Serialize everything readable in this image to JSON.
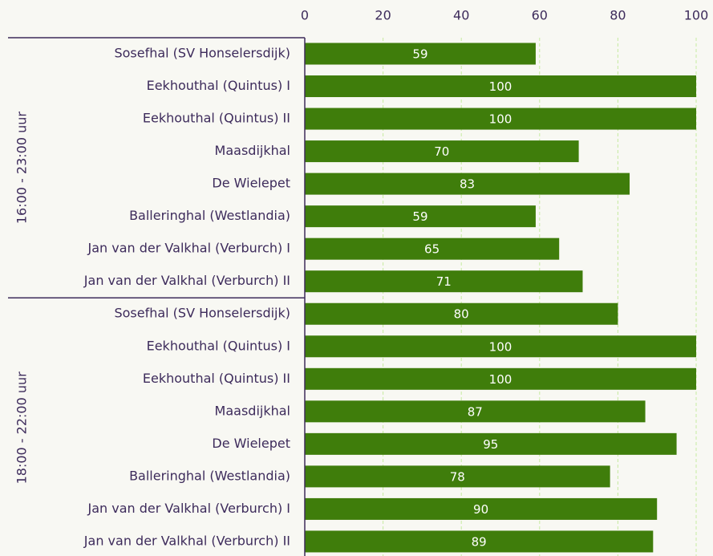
{
  "chart_data": {
    "type": "bar",
    "orientation": "horizontal",
    "color": "#3f7d0b",
    "grid": true,
    "xlim": [
      0,
      100
    ],
    "xticks": [
      0,
      20,
      40,
      60,
      80,
      100
    ],
    "groups": [
      {
        "label": "16:00 - 23:00 uur",
        "categories": [
          "Sosefhal (SV Honselersdijk)",
          "Eekhouthal (Quintus) I",
          "Eekhouthal (Quintus) II",
          "Maasdijkhal",
          "De Wielepet",
          "Balleringhal (Westlandia)",
          "Jan van der Valkhal (Verburch) I",
          "Jan van der Valkhal (Verburch) II"
        ],
        "values": [
          59,
          100,
          100,
          70,
          83,
          59,
          65,
          71
        ]
      },
      {
        "label": "18:00 - 22:00 uur",
        "categories": [
          "Sosefhal (SV Honselersdijk)",
          "Eekhouthal (Quintus) I",
          "Eekhouthal (Quintus) II",
          "Maasdijkhal",
          "De Wielepet",
          "Balleringhal (Westlandia)",
          "Jan van der Valkhal (Verburch) I",
          "Jan van der Valkhal (Verburch) II"
        ],
        "values": [
          80,
          100,
          100,
          87,
          95,
          78,
          90,
          89
        ]
      }
    ]
  }
}
